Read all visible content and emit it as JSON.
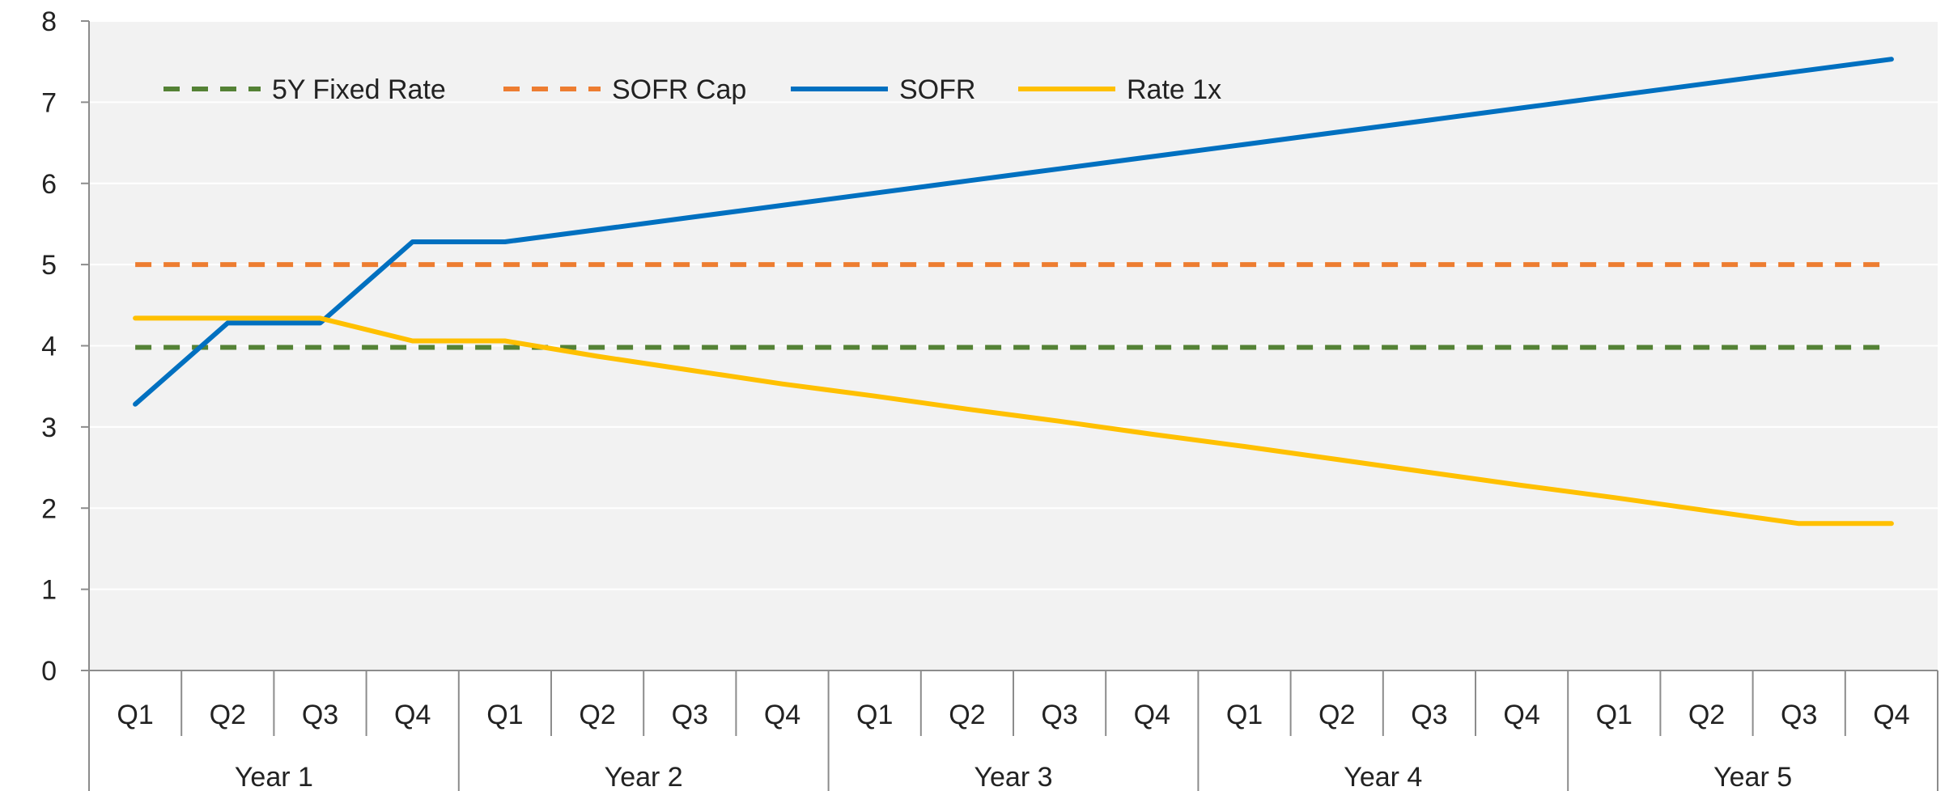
{
  "chart_data": {
    "type": "line",
    "title": "",
    "xlabel": "",
    "ylabel": "",
    "ylim": [
      0,
      8
    ],
    "yticks": [
      0,
      1,
      2,
      3,
      4,
      5,
      6,
      7,
      8
    ],
    "grid": true,
    "legend_position": "top-left",
    "background": "#f2f2f2",
    "groups": [
      "Year 1",
      "Year 2",
      "Year 3",
      "Year 4",
      "Year 5"
    ],
    "quarters": [
      "Q1",
      "Q2",
      "Q3",
      "Q4"
    ],
    "categories": [
      "Year 1 Q1",
      "Year 1 Q2",
      "Year 1 Q3",
      "Year 1 Q4",
      "Year 2 Q1",
      "Year 2 Q2",
      "Year 2 Q3",
      "Year 2 Q4",
      "Year 3 Q1",
      "Year 3 Q2",
      "Year 3 Q3",
      "Year 3 Q4",
      "Year 4 Q1",
      "Year 4 Q2",
      "Year 4 Q3",
      "Year 4 Q4",
      "Year 5 Q1",
      "Year 5 Q2",
      "Year 5 Q3",
      "Year 5 Q4"
    ],
    "series": [
      {
        "name": "5Y Fixed Rate",
        "color": "#548235",
        "dashed": true,
        "values": [
          3.98,
          3.98,
          3.98,
          3.98,
          3.98,
          3.98,
          3.98,
          3.98,
          3.98,
          3.98,
          3.98,
          3.98,
          3.98,
          3.98,
          3.98,
          3.98,
          3.98,
          3.98,
          3.98,
          3.98
        ]
      },
      {
        "name": "SOFR Cap",
        "color": "#ed7d31",
        "dashed": true,
        "values": [
          5.0,
          5.0,
          5.0,
          5.0,
          5.0,
          5.0,
          5.0,
          5.0,
          5.0,
          5.0,
          5.0,
          5.0,
          5.0,
          5.0,
          5.0,
          5.0,
          5.0,
          5.0,
          5.0,
          5.0
        ]
      },
      {
        "name": "SOFR",
        "color": "#0070c0",
        "dashed": false,
        "values": [
          3.28,
          4.28,
          4.28,
          5.28,
          5.28,
          5.43,
          5.58,
          5.73,
          5.88,
          6.03,
          6.18,
          6.33,
          6.48,
          6.63,
          6.78,
          6.93,
          7.08,
          7.23,
          7.38,
          7.53
        ]
      },
      {
        "name": "Rate 1x",
        "color": "#ffc000",
        "dashed": false,
        "values": [
          4.34,
          4.34,
          4.34,
          4.06,
          4.06,
          3.87,
          3.7,
          3.53,
          3.38,
          3.22,
          3.07,
          2.91,
          2.76,
          2.6,
          2.44,
          2.28,
          2.13,
          1.97,
          1.81,
          1.81
        ]
      }
    ]
  }
}
